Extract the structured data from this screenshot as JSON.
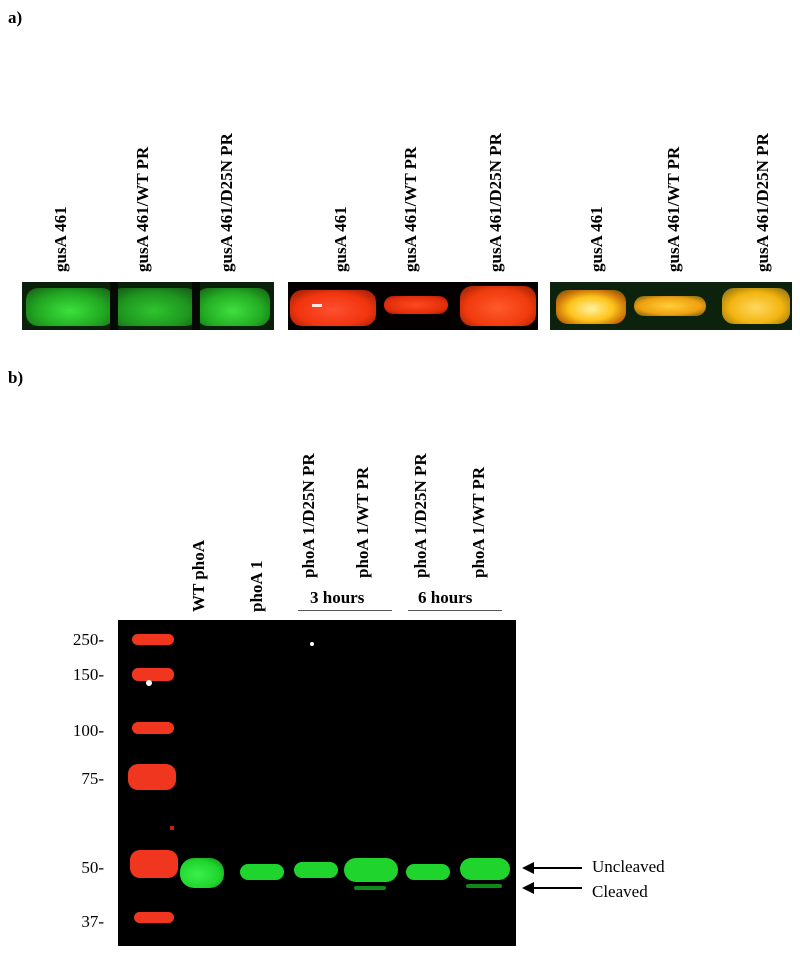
{
  "panel_a": {
    "label": "a)",
    "groups": [
      {
        "lanes": [
          "gusA 461",
          "gusA 461/WT PR",
          "gusA 461/D25N PR"
        ]
      },
      {
        "lanes": [
          "gusA 461",
          "gusA 461/WT PR",
          "gusA 461/D25N PR"
        ]
      },
      {
        "lanes": [
          "gusA 461",
          "gusA 461/WT PR",
          "gusA 461/D25N PR"
        ]
      }
    ],
    "colors": {
      "green": "#2fd52f",
      "red": "#ff3a14",
      "merge": "#ffc21a"
    }
  },
  "panel_b": {
    "label": "b)",
    "lanes": [
      "WT phoA",
      "phoA 1",
      "phoA 1/D25N PR",
      "phoA 1/WT PR",
      "phoA 1/D25N PR",
      "phoA 1/WT PR"
    ],
    "time_groups": [
      "3 hours",
      "6 hours"
    ],
    "mw_markers": [
      "250-",
      "150-",
      "100-",
      "75-",
      "50-",
      "37-"
    ],
    "annotations": {
      "uncleaved": "Uncleaved",
      "cleaved": "Cleaved"
    },
    "colors": {
      "marker": "#f0361e",
      "band": "#1fd42c",
      "background": "#000000"
    }
  }
}
